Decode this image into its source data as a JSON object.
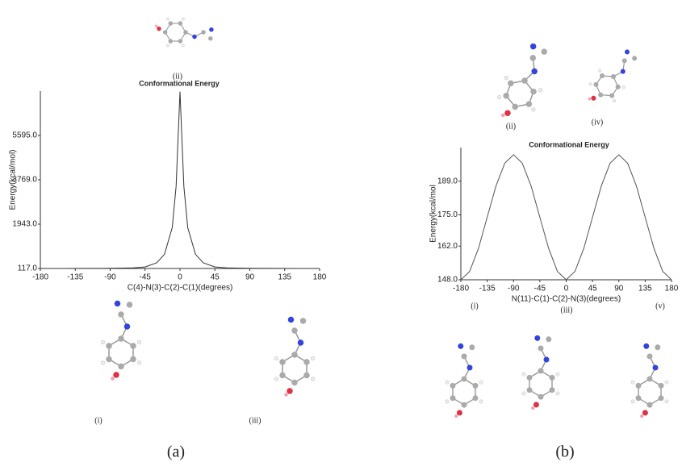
{
  "chart_data": [
    {
      "type": "line",
      "title": "Conformational Energy",
      "xlabel": "C(4)-N(3)-C(2)-C(1)(degrees)",
      "ylabel": "Energy(kcal/mol)",
      "x": [
        -180,
        -150,
        -120,
        -90,
        -60,
        -45,
        -30,
        -20,
        -10,
        -5,
        0,
        5,
        10,
        20,
        30,
        45,
        60,
        90,
        120,
        150,
        180
      ],
      "values": [
        117,
        118,
        120,
        125,
        140,
        180,
        350,
        700,
        1800,
        3500,
        7400,
        3500,
        1800,
        700,
        350,
        180,
        140,
        125,
        120,
        118,
        117
      ],
      "color": "#333333",
      "xlim": [
        -180,
        180
      ],
      "xticks": [
        -180,
        -135,
        -90,
        -45,
        0,
        45,
        90,
        135,
        180
      ],
      "ylim": [
        117,
        7421
      ],
      "yticks": [
        {
          "value": 117,
          "label": "117.0"
        },
        {
          "value": 1943,
          "label": "1943.0"
        },
        {
          "value": 3769,
          "label": "3769.0"
        },
        {
          "value": 5595,
          "label": "5595.0"
        }
      ]
    },
    {
      "type": "line",
      "title": "Conformational Energy",
      "xlabel": "N(11)-C(1)-C(2)-N(3)(degrees)",
      "ylabel": "Energy(kcal/mol",
      "x": [
        -180,
        -165,
        -150,
        -135,
        -120,
        -105,
        -90,
        -75,
        -60,
        -45,
        -30,
        -15,
        0,
        15,
        30,
        45,
        60,
        75,
        90,
        105,
        120,
        135,
        150,
        165,
        180
      ],
      "values": [
        148,
        151.5,
        161,
        174,
        187,
        196.5,
        200,
        196.5,
        187,
        174,
        161,
        151.5,
        148,
        151.5,
        161,
        174,
        187,
        196.5,
        200,
        196.5,
        187,
        174,
        161,
        151.5,
        148
      ],
      "color": "#555555",
      "xlim": [
        -180,
        180
      ],
      "xticks": [
        -180,
        -135,
        -90,
        -45,
        0,
        45,
        90,
        135,
        180
      ],
      "ylim": [
        148,
        203
      ],
      "yticks": [
        {
          "value": 148,
          "label": "148.0"
        },
        {
          "value": 162,
          "label": "162.0"
        },
        {
          "value": 175,
          "label": "175.0"
        },
        {
          "value": 189,
          "label": "189.0"
        }
      ]
    }
  ],
  "figure": {
    "panels": [
      {
        "label": "(a)",
        "structures": [
          "(ii)",
          "(i)",
          "(iii)"
        ]
      },
      {
        "label": "(b)",
        "structures": [
          "(ii)",
          "(iv)",
          "(i)",
          "(iii)",
          "(v)"
        ]
      }
    ]
  }
}
